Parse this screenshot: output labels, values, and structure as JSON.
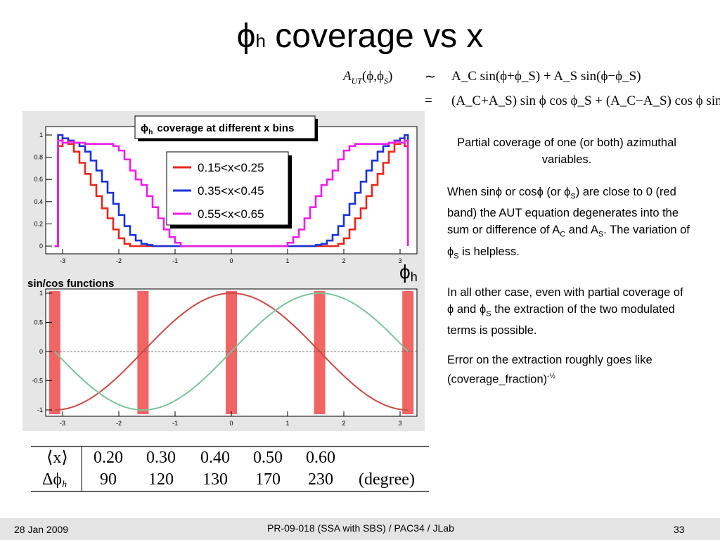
{
  "slide": {
    "title_main": "coverage vs x",
    "title_symbol": "ϕ",
    "title_subscript": "h"
  },
  "equation": {
    "lhs": "A",
    "lhs_sub": "UT",
    "lhs_args": "(ϕ,ϕ",
    "lhs_args_sub": "S",
    "lhs_close": ")",
    "sim": "∼",
    "eq": "=",
    "line1": "A_C sin(ϕ+ϕ_S) + A_S sin(ϕ−ϕ_S)",
    "line2": "(A_C+A_S) sin ϕ cos ϕ_S + (A_C−A_S) cos ϕ sin ϕ_S"
  },
  "top_plot": {
    "title_symbol": "ϕ",
    "title_subscript": "h",
    "title_text": "coverage at different x bins",
    "y_ticks": [
      "0",
      "0.2",
      "0.4",
      "0.6",
      "0.8",
      "1"
    ],
    "x_ticks": [
      "-3",
      "-2",
      "-1",
      "0",
      "1",
      "2",
      "3"
    ],
    "axis_label_symbol": "ϕ",
    "axis_label_subscript": "h",
    "legend": [
      "0.15<x<0.25",
      "0.35<x<0.45",
      "0.55<x<0.65"
    ],
    "colors": {
      "red": "#e8261c",
      "blue": "#1a33d6",
      "magenta": "#ee1ee8",
      "white": "#ffffff"
    }
  },
  "bottom_plot": {
    "title": "sin/cos functions",
    "y_ticks": [
      "-1",
      "-0.5",
      "0",
      "0.5",
      "1"
    ],
    "x_ticks": [
      "-3",
      "-2",
      "-1",
      "0",
      "1",
      "2",
      "3"
    ],
    "colors": {
      "sin": "#cc4a44",
      "cos": "#7cc49a",
      "band": "#f26565"
    }
  },
  "chart_data": [
    {
      "type": "line",
      "title": "ϕh coverage at different x bins",
      "xlabel": "ϕh",
      "ylabel": "",
      "xlim": [
        -3.14,
        3.14
      ],
      "ylim": [
        0,
        1
      ],
      "grid": false,
      "legend_placement": "top-center",
      "series": [
        {
          "name": "0.15<x<0.25",
          "color": "#e8261c",
          "x": [
            -3.14,
            -3.08,
            -3.0,
            -2.9,
            -2.8,
            -2.7,
            -2.6,
            -2.5,
            -2.4,
            -2.3,
            -2.2,
            -2.1,
            -2.0,
            -1.9,
            -1.8,
            -1.6,
            0,
            1.6,
            1.8,
            1.9,
            2.0,
            2.1,
            2.2,
            2.3,
            2.4,
            2.5,
            2.6,
            2.7,
            2.8,
            2.9,
            3.0,
            3.08,
            3.14
          ],
          "values": [
            0,
            0.9,
            0.97,
            0.92,
            0.85,
            0.75,
            0.65,
            0.55,
            0.45,
            0.34,
            0.25,
            0.15,
            0.07,
            0.02,
            0,
            0,
            0,
            0,
            0,
            0.02,
            0.07,
            0.15,
            0.25,
            0.34,
            0.45,
            0.55,
            0.65,
            0.75,
            0.85,
            0.92,
            0.97,
            0.9,
            0
          ]
        },
        {
          "name": "0.35<x<0.45",
          "color": "#1a33d6",
          "x": [
            -3.14,
            -3.08,
            -3.0,
            -2.9,
            -2.8,
            -2.7,
            -2.6,
            -2.5,
            -2.4,
            -2.3,
            -2.2,
            -2.1,
            -2.0,
            -1.9,
            -1.8,
            -1.7,
            -1.6,
            -1.5,
            -1.4,
            0,
            1.4,
            1.5,
            1.6,
            1.7,
            1.8,
            1.9,
            2.0,
            2.1,
            2.2,
            2.3,
            2.4,
            2.5,
            2.6,
            2.7,
            2.8,
            2.9,
            3.0,
            3.08,
            3.14
          ],
          "values": [
            0,
            1.0,
            0.97,
            0.95,
            0.93,
            0.9,
            0.85,
            0.77,
            0.68,
            0.58,
            0.48,
            0.38,
            0.28,
            0.18,
            0.1,
            0.05,
            0.02,
            0.01,
            0,
            0,
            0,
            0.01,
            0.02,
            0.05,
            0.1,
            0.18,
            0.28,
            0.38,
            0.48,
            0.58,
            0.68,
            0.77,
            0.85,
            0.9,
            0.93,
            0.95,
            0.97,
            1.0,
            0
          ]
        },
        {
          "name": "0.55<x<0.65",
          "color": "#ee1ee8",
          "x": [
            -3.14,
            -3.08,
            -3.0,
            -2.9,
            -2.8,
            -2.6,
            -2.4,
            -2.2,
            -2.1,
            -2.0,
            -1.9,
            -1.8,
            -1.7,
            -1.6,
            -1.5,
            -1.4,
            -1.3,
            -1.2,
            -1.1,
            -1.0,
            -0.9,
            0,
            0.9,
            1.0,
            1.1,
            1.2,
            1.3,
            1.4,
            1.5,
            1.6,
            1.7,
            1.8,
            1.9,
            2.0,
            2.1,
            2.2,
            2.4,
            2.6,
            2.8,
            2.9,
            3.0,
            3.08,
            3.14
          ],
          "values": [
            0,
            0.95,
            0.93,
            0.94,
            0.93,
            0.92,
            0.92,
            0.92,
            0.9,
            0.86,
            0.78,
            0.68,
            0.6,
            0.55,
            0.45,
            0.35,
            0.25,
            0.15,
            0.08,
            0.03,
            0,
            0,
            0,
            0.03,
            0.08,
            0.15,
            0.25,
            0.35,
            0.45,
            0.55,
            0.6,
            0.68,
            0.78,
            0.86,
            0.9,
            0.92,
            0.92,
            0.92,
            0.93,
            0.94,
            0.93,
            0.95,
            0
          ]
        }
      ]
    },
    {
      "type": "line",
      "title": "sin/cos functions",
      "xlabel": "",
      "ylabel": "",
      "xlim": [
        -3.14,
        3.14
      ],
      "ylim": [
        -1,
        1
      ],
      "grid": false,
      "series": [
        {
          "color": "#cc4a44",
          "function": "cos(x)"
        },
        {
          "color": "#7cc49a",
          "function": "sin(x)"
        }
      ],
      "bands": [
        -3.14,
        -1.57,
        0,
        1.57,
        3.14
      ]
    }
  ],
  "right_text": {
    "p1": "Partial coverage of one (or both) azimuthal variables.",
    "p2_a": "When sin",
    "p2_phi1": "ϕ",
    "p2_b": " or cos",
    "p2_phi2": "ϕ",
    "p2_c": " (or ",
    "p2_phi3": "ϕ",
    "p2_s1": "S",
    "p2_d": ") are close to 0 (red band) the AUT equation degenerates into the sum or difference of A",
    "p2_c_sub": "C",
    "p2_e": " and A",
    "p2_s2": "S",
    "p2_f": ". The variation of ",
    "p2_phi4": "ϕ",
    "p2_s3": "S",
    "p2_g": " is helpless.",
    "p3_a": "In all other case, even with partial coverage of ",
    "p3_phi1": "ϕ",
    "p3_b": " and ",
    "p3_phi2": "ϕ",
    "p3_s": "S",
    "p3_c": " the extraction of the two modulated terms is possible.",
    "p4_a": "Error on the extraction roughly goes like (coverage_fraction)",
    "p4_sup": "-½"
  },
  "table": {
    "row1_head": "⟨x⟩",
    "row1": [
      "0.20",
      "0.30",
      "0.40",
      "0.50",
      "0.60"
    ],
    "row2_head": "Δϕ",
    "row2_head_sub": "h",
    "row2": [
      "90",
      "120",
      "130",
      "170",
      "230"
    ],
    "unit": "(degree)"
  },
  "footer": {
    "date": "28 Jan 2009",
    "center": "PR-09-018 (SSA with SBS) / PAC34 / JLab",
    "page": "33"
  }
}
